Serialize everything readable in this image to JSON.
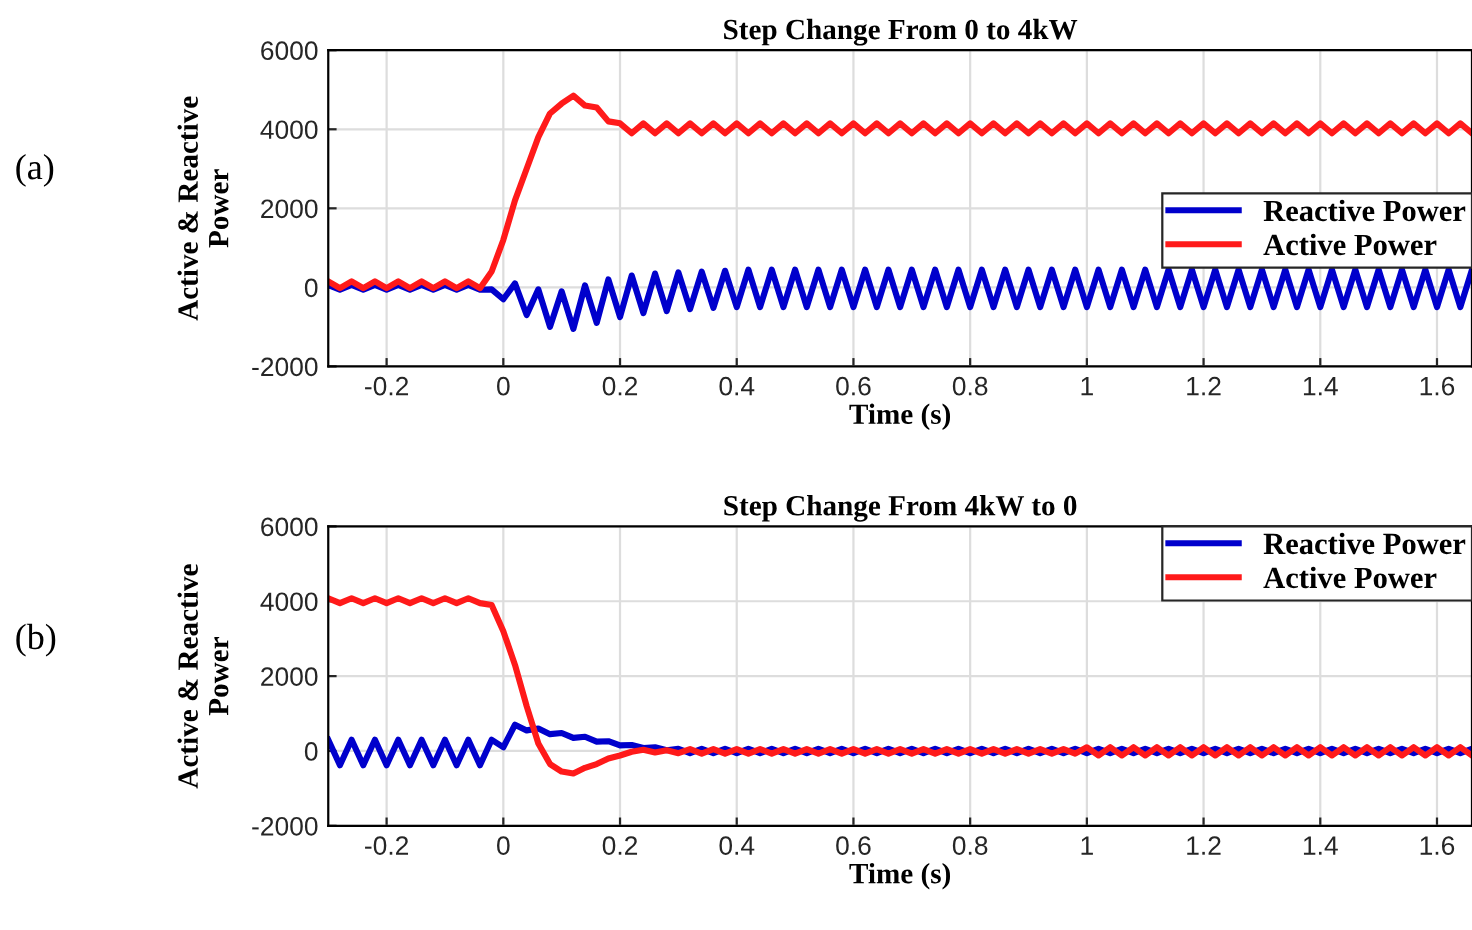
{
  "chart_data": [
    {
      "type": "line",
      "title": "Step Change From 0 to 4kW",
      "xlabel": "Time (s)",
      "ylabel": "Active & Reactive\nPower",
      "annotations": [
        "(a)"
      ],
      "x": [
        -0.3,
        -0.28,
        -0.26,
        -0.24,
        -0.22,
        -0.2,
        -0.18,
        -0.16,
        -0.14,
        -0.12,
        -0.1,
        -0.08,
        -0.06,
        -0.04,
        -0.02,
        0,
        0.02,
        0.04,
        0.06,
        0.08,
        0.1,
        0.12,
        0.14,
        0.16,
        0.18,
        0.2,
        0.22,
        0.24,
        0.26,
        0.28,
        0.3,
        0.32,
        0.34,
        0.36,
        0.38,
        0.4,
        0.42,
        0.44,
        0.46,
        0.48,
        0.5,
        0.52,
        0.54,
        0.56,
        0.58,
        0.6,
        0.62,
        0.64,
        0.66,
        0.68,
        0.7,
        0.72,
        0.74,
        0.76,
        0.78,
        0.8,
        0.82,
        0.84,
        0.86,
        0.88,
        0.9,
        0.92,
        0.94,
        0.96,
        0.98,
        1,
        1.02,
        1.04,
        1.06,
        1.08,
        1.1,
        1.12,
        1.14,
        1.16,
        1.18,
        1.2,
        1.22,
        1.24,
        1.26,
        1.28,
        1.3,
        1.32,
        1.34,
        1.36,
        1.38,
        1.4,
        1.42,
        1.44,
        1.46,
        1.48,
        1.5,
        1.52,
        1.54,
        1.56,
        1.58,
        1.6,
        1.62,
        1.64,
        1.66
      ],
      "series": [
        {
          "name": "Reactive Power",
          "color": "#0000cc",
          "values": [
            60,
            -60,
            60,
            -60,
            60,
            -60,
            60,
            -60,
            60,
            -60,
            60,
            -60,
            60,
            -60,
            -50,
            -300,
            100,
            -700,
            -50,
            -1000,
            -100,
            -1050,
            50,
            -900,
            200,
            -750,
            300,
            -650,
            350,
            -600,
            380,
            -550,
            400,
            -520,
            420,
            -500,
            450,
            -500,
            450,
            -500,
            450,
            -500,
            450,
            -500,
            450,
            -500,
            450,
            -500,
            450,
            -500,
            450,
            -500,
            450,
            -500,
            450,
            -500,
            450,
            -500,
            450,
            -500,
            450,
            -500,
            450,
            -500,
            450,
            -500,
            450,
            -500,
            450,
            -500,
            450,
            -500,
            450,
            -500,
            450,
            -500,
            450,
            -500,
            450,
            -500,
            450,
            -500,
            450,
            -500,
            450,
            -500,
            450,
            -500,
            450,
            -500,
            450,
            -500,
            450,
            -500,
            450,
            -500,
            450,
            -500,
            450
          ]
        },
        {
          "name": "Active Power",
          "color": "#ff1a1a",
          "values": [
            150,
            -20,
            150,
            -20,
            150,
            -20,
            150,
            -20,
            150,
            -20,
            150,
            -20,
            150,
            -20,
            400,
            1200,
            2200,
            3000,
            3800,
            4400,
            4650,
            4850,
            4600,
            4550,
            4200,
            4150,
            3900,
            4150,
            3900,
            4150,
            3900,
            4150,
            3900,
            4150,
            3900,
            4150,
            3900,
            4150,
            3900,
            4150,
            3900,
            4150,
            3900,
            4150,
            3900,
            4150,
            3900,
            4150,
            3900,
            4150,
            3900,
            4150,
            3900,
            4150,
            3900,
            4150,
            3900,
            4150,
            3900,
            4150,
            3900,
            4150,
            3900,
            4150,
            3900,
            4150,
            3900,
            4150,
            3900,
            4150,
            3900,
            4150,
            3900,
            4150,
            3900,
            4150,
            3900,
            4150,
            3900,
            4150,
            3900,
            4150,
            3900,
            4150,
            3900,
            4150,
            3900,
            4150,
            3900,
            4150,
            3900,
            4150,
            3900,
            4150,
            3900,
            4150,
            3900,
            4150,
            3900
          ]
        }
      ],
      "xlim": [
        -0.3,
        1.66
      ],
      "xticks": [
        -0.2,
        0,
        0.2,
        0.4,
        0.6,
        0.8,
        1,
        1.2,
        1.4,
        1.6
      ],
      "ylim": [
        -2000,
        6000
      ],
      "yticks": [
        -2000,
        0,
        2000,
        4000,
        6000
      ],
      "grid": true,
      "legend": "right"
    },
    {
      "type": "line",
      "title": "Step Change From 4kW to 0",
      "xlabel": "Time (s)",
      "ylabel": "Active & Reactive\nPower",
      "annotations": [
        "(b)"
      ],
      "x": [
        -0.3,
        -0.28,
        -0.26,
        -0.24,
        -0.22,
        -0.2,
        -0.18,
        -0.16,
        -0.14,
        -0.12,
        -0.1,
        -0.08,
        -0.06,
        -0.04,
        -0.02,
        0,
        0.02,
        0.04,
        0.06,
        0.08,
        0.1,
        0.12,
        0.14,
        0.16,
        0.18,
        0.2,
        0.22,
        0.24,
        0.26,
        0.28,
        0.3,
        0.32,
        0.34,
        0.36,
        0.38,
        0.4,
        0.42,
        0.44,
        0.46,
        0.48,
        0.5,
        0.52,
        0.54,
        0.56,
        0.58,
        0.6,
        0.62,
        0.64,
        0.66,
        0.68,
        0.7,
        0.72,
        0.74,
        0.76,
        0.78,
        0.8,
        0.82,
        0.84,
        0.86,
        0.88,
        0.9,
        0.92,
        0.94,
        0.96,
        0.98,
        1,
        1.02,
        1.04,
        1.06,
        1.08,
        1.1,
        1.12,
        1.14,
        1.16,
        1.18,
        1.2,
        1.22,
        1.24,
        1.26,
        1.28,
        1.3,
        1.32,
        1.34,
        1.36,
        1.38,
        1.4,
        1.42,
        1.44,
        1.46,
        1.48,
        1.5,
        1.52,
        1.54,
        1.56,
        1.58,
        1.6,
        1.62,
        1.64,
        1.66
      ],
      "series": [
        {
          "name": "Reactive Power",
          "color": "#0000cc",
          "values": [
            300,
            -380,
            300,
            -380,
            300,
            -380,
            300,
            -380,
            300,
            -380,
            300,
            -380,
            300,
            -380,
            300,
            100,
            700,
            550,
            600,
            450,
            480,
            350,
            380,
            250,
            260,
            150,
            160,
            80,
            100,
            20,
            60,
            -60,
            60,
            -60,
            60,
            -60,
            60,
            -60,
            60,
            -60,
            60,
            -60,
            60,
            -60,
            60,
            -60,
            60,
            -60,
            60,
            -60,
            60,
            -60,
            60,
            -60,
            60,
            -60,
            60,
            -60,
            60,
            -60,
            60,
            -60,
            60,
            -60,
            60,
            -60,
            60,
            -60,
            60,
            -60,
            60,
            -60,
            60,
            -60,
            60,
            -60,
            60,
            -60,
            60,
            -60,
            60,
            -60,
            60,
            -60,
            60,
            -60,
            60,
            -60,
            60,
            -60,
            60,
            -60,
            60,
            -60,
            60,
            -60,
            60,
            -60,
            60
          ]
        },
        {
          "name": "Active Power",
          "color": "#ff1a1a",
          "values": [
            4080,
            3950,
            4080,
            3950,
            4080,
            3950,
            4080,
            3950,
            4080,
            3950,
            4080,
            3950,
            4080,
            3950,
            3900,
            3200,
            2300,
            1200,
            200,
            -350,
            -550,
            -600,
            -450,
            -350,
            -200,
            -120,
            -20,
            30,
            -40,
            20,
            -60,
            50,
            -70,
            50,
            -70,
            50,
            -70,
            50,
            -70,
            50,
            -70,
            50,
            -70,
            50,
            -70,
            50,
            -70,
            50,
            -70,
            50,
            -70,
            50,
            -70,
            50,
            -70,
            50,
            -70,
            50,
            -70,
            50,
            -70,
            50,
            -70,
            50,
            -70,
            100,
            -120,
            100,
            -120,
            100,
            -120,
            100,
            -120,
            100,
            -120,
            100,
            -120,
            100,
            -120,
            100,
            -120,
            100,
            -120,
            100,
            -120,
            100,
            -120,
            100,
            -120,
            100,
            -120,
            100,
            -120,
            100,
            -120,
            100,
            -120,
            100,
            -120
          ]
        }
      ],
      "xlim": [
        -0.3,
        1.66
      ],
      "xticks": [
        -0.2,
        0,
        0.2,
        0.4,
        0.6,
        0.8,
        1,
        1.2,
        1.4,
        1.6
      ],
      "ylim": [
        -2000,
        6000
      ],
      "yticks": [
        -2000,
        0,
        2000,
        4000,
        6000
      ],
      "grid": true,
      "legend": "top right"
    }
  ]
}
